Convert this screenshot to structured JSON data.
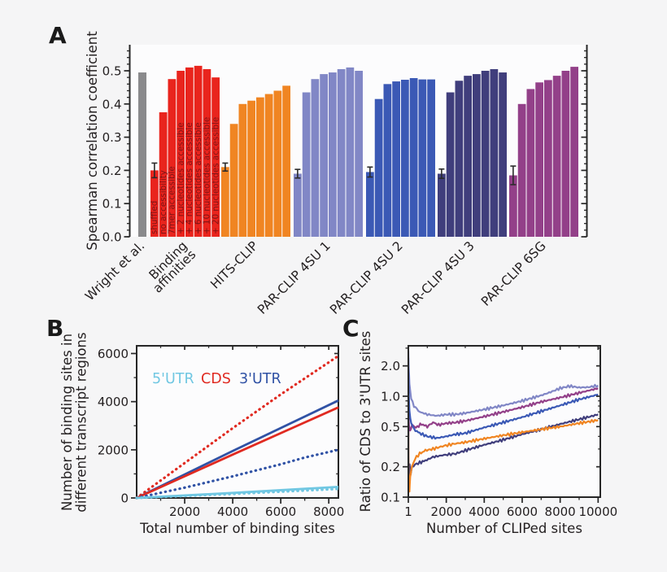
{
  "figure": {
    "background": "#f5f5f6",
    "plot_background": "#fcfcfd",
    "axis_color": "#262626",
    "text_color": "#231f20",
    "panels": {
      "a": {
        "letter": "A"
      },
      "b": {
        "letter": "B"
      },
      "c": {
        "letter": "C"
      }
    }
  },
  "chart_data": [
    {
      "type": "bar",
      "panel": "A",
      "ylabel": "Spearman correlation coefficient",
      "ylim": [
        0.0,
        0.58
      ],
      "yticks": [
        0.0,
        0.1,
        0.2,
        0.3,
        0.4,
        0.5
      ],
      "ytick_labels": [
        "0.0",
        "0.1",
        "0.2",
        "0.3",
        "0.4",
        "0.5"
      ],
      "grid": false,
      "condition_label_color": "#7e1315",
      "bar_condition_labels": [
        "shuffled",
        "no accessibility",
        "7mer accessible",
        "+ 2 nucleotides accessible",
        "+ 4 nucleotides accessible",
        "+ 6 nucleotides accessible",
        "+ 10 nucleotides accessible",
        "+ 20 nucleotides accessible"
      ],
      "groups": [
        {
          "label": "Wright et al.",
          "color": "#8a8a8c",
          "values": [
            0.495
          ]
        },
        {
          "label": "Binding\naffinities",
          "color": "#e9241d",
          "values": [
            0.2,
            0.375,
            0.475,
            0.5,
            0.51,
            0.515,
            0.505,
            0.48
          ],
          "error_first": 0.022,
          "show_condition_labels": true
        },
        {
          "label": "HITS-CLIP",
          "color": "#f08522",
          "values": [
            0.21,
            0.34,
            0.4,
            0.41,
            0.42,
            0.43,
            0.44,
            0.455
          ],
          "error_first": 0.012
        },
        {
          "label": "PAR-CLIP 4SU 1",
          "color": "#8187c6",
          "values": [
            0.19,
            0.435,
            0.475,
            0.49,
            0.495,
            0.505,
            0.51,
            0.5
          ],
          "error_first": 0.013
        },
        {
          "label": "PAR-CLIP 4SU 2",
          "color": "#3b59b5",
          "values": [
            0.195,
            0.415,
            0.46,
            0.468,
            0.473,
            0.478,
            0.474,
            0.474
          ],
          "error_first": 0.015
        },
        {
          "label": "PAR-CLIP 4SU 3",
          "color": "#403e7c",
          "values": [
            0.19,
            0.435,
            0.47,
            0.485,
            0.49,
            0.5,
            0.505,
            0.495
          ],
          "error_first": 0.014
        },
        {
          "label": "PAR-CLIP 6SG",
          "color": "#934089",
          "values": [
            0.185,
            0.4,
            0.445,
            0.465,
            0.472,
            0.485,
            0.5,
            0.512
          ],
          "error_first": 0.028
        }
      ]
    },
    {
      "type": "line",
      "panel": "B",
      "xlabel": "Total number of binding sites",
      "ylabel_lines": [
        "Number of binding sites in",
        "different transcript regions"
      ],
      "xlim": [
        0,
        8400
      ],
      "ylim": [
        0,
        6320
      ],
      "xticks": [
        2000,
        4000,
        6000,
        8000
      ],
      "xtick_labels": [
        "2000",
        "4000",
        "6000",
        "8000"
      ],
      "yticks": [
        0,
        2000,
        4000,
        6000
      ],
      "ytick_labels": [
        "0",
        "2000",
        "4000",
        "6000"
      ],
      "xminor": [
        1000,
        3000,
        5000,
        7000
      ],
      "yminor": [
        1000,
        3000,
        5000
      ],
      "grid": false,
      "legend": [
        {
          "label": "5'UTR",
          "color": "#70c7e2"
        },
        {
          "label": "CDS",
          "color": "#e02a21"
        },
        {
          "label": "3'UTR",
          "color": "#3052a5"
        }
      ],
      "series": [
        {
          "name": "CDS (dotted)",
          "color": "#e02a21",
          "style": "dotted",
          "x": [
            0,
            2000,
            4000,
            6000,
            8400
          ],
          "y": [
            0,
            1450,
            2900,
            4300,
            5900
          ]
        },
        {
          "name": "3'UTR (solid)",
          "color": "#3052a5",
          "style": "solid",
          "x": [
            0,
            4000,
            8400
          ],
          "y": [
            0,
            1950,
            4050
          ]
        },
        {
          "name": "CDS (solid)",
          "color": "#e02a21",
          "style": "solid",
          "x": [
            0,
            4000,
            8400
          ],
          "y": [
            0,
            1800,
            3760
          ]
        },
        {
          "name": "3'UTR (dotted)",
          "color": "#3052a5",
          "style": "dotted",
          "x": [
            0,
            2000,
            4000,
            6000,
            7000,
            8400
          ],
          "y": [
            0,
            430,
            900,
            1400,
            1680,
            2000
          ]
        },
        {
          "name": "5'UTR (solid)",
          "color": "#70c7e2",
          "style": "solid",
          "x": [
            0,
            4000,
            8400
          ],
          "y": [
            0,
            210,
            460
          ]
        },
        {
          "name": "5'UTR (dotted)",
          "color": "#70c7e2",
          "style": "dotted",
          "x": [
            0,
            4000,
            8400
          ],
          "y": [
            0,
            165,
            375
          ]
        }
      ]
    },
    {
      "type": "line",
      "panel": "C",
      "xlabel": "Number of CLIPed sites",
      "ylabel": "Ratio of CDS to 3'UTR sites",
      "xlim": [
        1,
        10120
      ],
      "ylim": [
        0.1,
        3.1
      ],
      "yscale": "log",
      "xticks": [
        1,
        2000,
        4000,
        6000,
        8000,
        10000
      ],
      "xtick_labels": [
        "1",
        "2000",
        "4000",
        "6000",
        "8000",
        "10000"
      ],
      "yticks": [
        0.1,
        0.2,
        0.5,
        1.0,
        2.0
      ],
      "ytick_labels": [
        "0.1",
        "0.2",
        "0.5",
        "1.0",
        "2.0"
      ],
      "xminor": [
        1000,
        3000,
        5000,
        7000,
        9000
      ],
      "yminor": [
        0.3,
        0.4,
        0.6,
        0.7,
        0.8,
        0.9,
        3.0
      ],
      "grid": false,
      "series": [
        {
          "name": "light-purple",
          "color": "#8187c6",
          "x": [
            1,
            20,
            60,
            150,
            300,
            600,
            1000,
            1500,
            2000,
            2500,
            3000,
            3500,
            4000,
            5000,
            6000,
            7000,
            7500,
            8000,
            8500,
            9000,
            9500,
            10000
          ],
          "y": [
            2.9,
            2.0,
            1.3,
            0.95,
            0.8,
            0.7,
            0.66,
            0.64,
            0.66,
            0.66,
            0.68,
            0.71,
            0.74,
            0.81,
            0.9,
            1.02,
            1.1,
            1.2,
            1.26,
            1.22,
            1.23,
            1.28
          ]
        },
        {
          "name": "purple",
          "color": "#934089",
          "x": [
            1,
            15,
            40,
            100,
            200,
            400,
            700,
            1000,
            1300,
            1600,
            2000,
            2500,
            3000,
            4000,
            5000,
            6000,
            7000,
            8000,
            9000,
            10000
          ],
          "y": [
            0.4,
            0.62,
            0.5,
            0.46,
            0.52,
            0.49,
            0.53,
            0.5,
            0.55,
            0.52,
            0.54,
            0.55,
            0.57,
            0.63,
            0.7,
            0.78,
            0.88,
            0.97,
            1.08,
            1.2
          ]
        },
        {
          "name": "medium-blue",
          "color": "#3b59b5",
          "x": [
            1,
            20,
            60,
            150,
            300,
            600,
            1000,
            1500,
            2000,
            2500,
            3000,
            4000,
            5000,
            6000,
            7000,
            8000,
            9000,
            10000
          ],
          "y": [
            2.4,
            1.1,
            0.7,
            0.55,
            0.47,
            0.43,
            0.4,
            0.385,
            0.4,
            0.42,
            0.43,
            0.49,
            0.55,
            0.62,
            0.71,
            0.81,
            0.93,
            1.04
          ]
        },
        {
          "name": "dark-navy",
          "color": "#403e7c",
          "x": [
            1,
            10,
            30,
            70,
            120,
            200,
            350,
            600,
            900,
            1300,
            1800,
            2500,
            3000,
            4000,
            5000,
            6000,
            7000,
            8000,
            9000,
            10000
          ],
          "y": [
            0.9,
            0.25,
            0.16,
            0.21,
            0.17,
            0.2,
            0.21,
            0.22,
            0.23,
            0.25,
            0.26,
            0.27,
            0.29,
            0.33,
            0.37,
            0.42,
            0.47,
            0.53,
            0.59,
            0.66
          ]
        },
        {
          "name": "orange",
          "color": "#f08522",
          "x": [
            1,
            10,
            30,
            60,
            100,
            200,
            350,
            600,
            900,
            1300,
            1800,
            2500,
            3000,
            4000,
            5000,
            6000,
            7000,
            8000,
            9000,
            10000
          ],
          "y": [
            0.45,
            0.18,
            0.12,
            0.115,
            0.16,
            0.2,
            0.24,
            0.27,
            0.29,
            0.3,
            0.32,
            0.34,
            0.35,
            0.38,
            0.41,
            0.44,
            0.47,
            0.5,
            0.54,
            0.58
          ]
        }
      ]
    }
  ]
}
